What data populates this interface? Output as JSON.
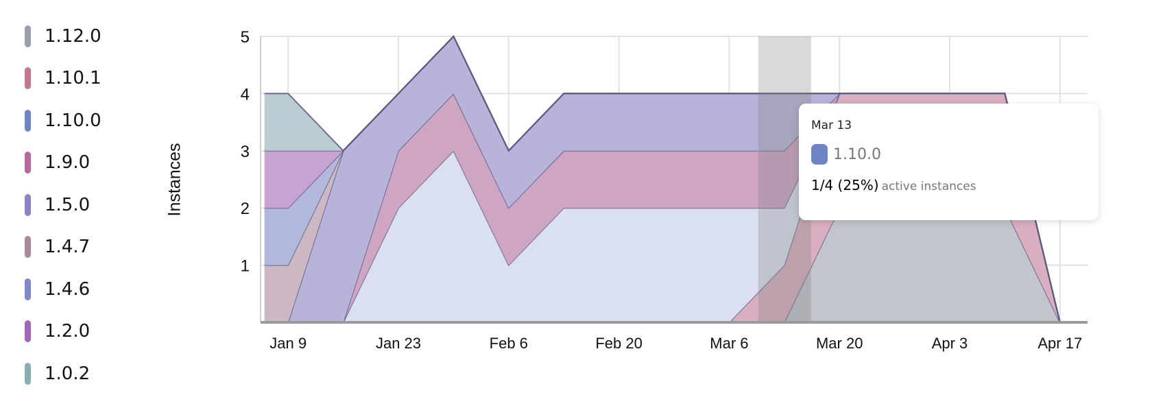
{
  "legend": [
    {
      "label": "1.12.0",
      "color": "#9aa0aa"
    },
    {
      "label": "1.10.1",
      "color": "#c07890"
    },
    {
      "label": "1.10.0",
      "color": "#6f84c4"
    },
    {
      "label": "1.9.0",
      "color": "#b56a9e"
    },
    {
      "label": "1.5.0",
      "color": "#8b82c4"
    },
    {
      "label": "1.4.7",
      "color": "#a88a98"
    },
    {
      "label": "1.4.6",
      "color": "#8088c8"
    },
    {
      "label": "1.2.0",
      "color": "#a368b4"
    },
    {
      "label": "1.0.2",
      "color": "#88aeb4"
    }
  ],
  "tooltip": {
    "date": "Mar 13",
    "series": "1.10.0",
    "color": "#6f84c4",
    "value": "1/4 (25%)",
    "suffix": "active instances"
  },
  "chart_data": {
    "type": "area",
    "stacked": true,
    "ylabel": "Instances",
    "ylim": [
      0,
      5
    ],
    "yticks": [
      1,
      2,
      3,
      4,
      5
    ],
    "xlim": [
      "Jan 6",
      "Apr 20"
    ],
    "xticks": [
      "Jan 9",
      "Jan 23",
      "Feb 6",
      "Feb 20",
      "Mar 6",
      "Mar 20",
      "Apr 3",
      "Apr 17"
    ],
    "grid": true,
    "legend_position": "left",
    "highlight": "Mar 13",
    "x": [
      "Jan 6",
      "Jan 9",
      "Jan 16",
      "Jan 23",
      "Jan 30",
      "Feb 6",
      "Feb 13",
      "Feb 20",
      "Feb 27",
      "Mar 6",
      "Mar 13",
      "Mar 20",
      "Mar 27",
      "Apr 3",
      "Apr 10",
      "Apr 17",
      "Apr 20"
    ],
    "series": [
      {
        "name": "1.12.0",
        "fill": "#c2c5cc",
        "values": [
          0,
          0,
          0,
          0,
          0,
          0,
          0,
          0,
          0,
          0,
          0,
          2,
          2,
          2,
          2,
          0,
          0
        ]
      },
      {
        "name": "1.10.1",
        "fill": "#d8aec0",
        "values": [
          0,
          0,
          0,
          0,
          0,
          0,
          0,
          0,
          0,
          0,
          1,
          2,
          2,
          2,
          2,
          0,
          0
        ]
      },
      {
        "name": "1.10.0",
        "fill": "#dae0f0",
        "values": [
          0,
          0,
          0,
          2,
          3,
          1,
          2,
          2,
          2,
          2,
          1,
          0,
          0,
          0,
          0,
          0,
          0
        ]
      },
      {
        "name": "1.9.0",
        "fill": "#cfa5c4",
        "values": [
          0,
          0,
          0,
          1,
          1,
          1,
          1,
          1,
          1,
          1,
          1,
          0,
          0,
          0,
          0,
          0,
          0
        ]
      },
      {
        "name": "1.5.0",
        "fill": "#b8b3d9",
        "values": [
          0,
          0,
          3,
          1,
          1,
          1,
          1,
          1,
          1,
          1,
          1,
          0,
          0,
          0,
          0,
          0,
          0
        ]
      },
      {
        "name": "1.4.7",
        "fill": "#cbb8c3",
        "values": [
          1,
          1,
          0,
          0,
          0,
          0,
          0,
          0,
          0,
          0,
          0,
          0,
          0,
          0,
          0,
          0,
          0
        ]
      },
      {
        "name": "1.4.6",
        "fill": "#b2b8da",
        "values": [
          1,
          1,
          0,
          0,
          0,
          0,
          0,
          0,
          0,
          0,
          0,
          0,
          0,
          0,
          0,
          0,
          0
        ]
      },
      {
        "name": "1.2.0",
        "fill": "#c8a2d0",
        "values": [
          1,
          1,
          0,
          0,
          0,
          0,
          0,
          0,
          0,
          0,
          0,
          0,
          0,
          0,
          0,
          0,
          0
        ]
      },
      {
        "name": "1.0.2",
        "fill": "#b8ccd2",
        "values": [
          1,
          1,
          0,
          0,
          0,
          0,
          0,
          0,
          0,
          0,
          0,
          0,
          0,
          0,
          0,
          0,
          0
        ]
      }
    ]
  }
}
